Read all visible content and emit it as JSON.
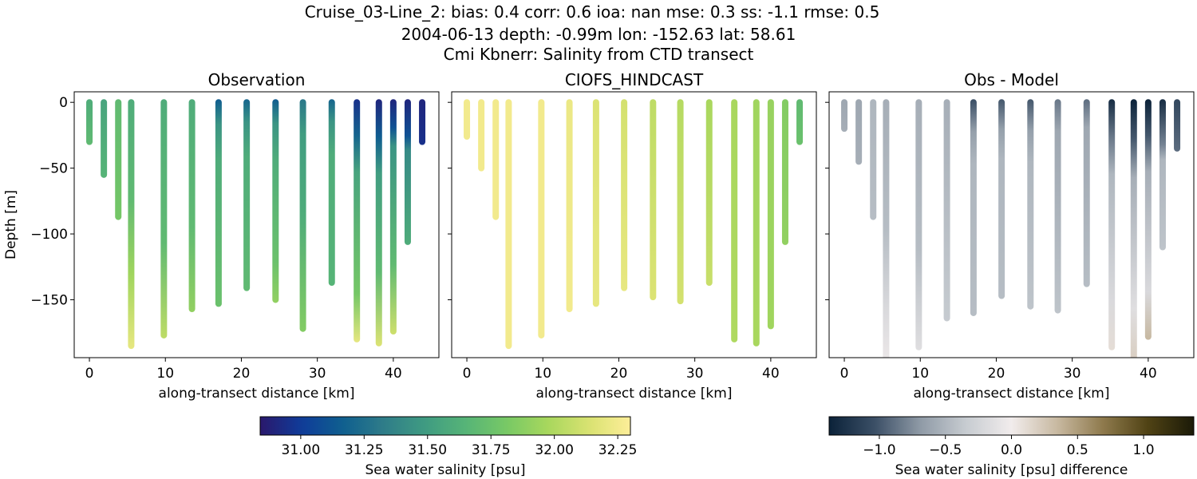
{
  "title": {
    "line1": "Cruise_03-Line_2: bias: 0.4  corr: 0.6  ioa: nan  mse: 0.3  ss: -1.1  rmse: 0.5",
    "line2": "2004-06-13 depth: -0.99m lon: -152.63 lat: 58.61",
    "line3": "Cmi Kbnerr: Salinity from CTD transect"
  },
  "colors": {
    "haline": [
      "#2a186c",
      "#0f3b99",
      "#0f5f8f",
      "#2f7c89",
      "#3f9b82",
      "#56b477",
      "#78c965",
      "#a8d75d",
      "#d9e271",
      "#fdee99"
    ],
    "diff": [
      "#0b2239",
      "#3b4f66",
      "#8f9aa6",
      "#c7ccd1",
      "#f1ecec",
      "#c8b9a1",
      "#8f7a4d",
      "#4f4214",
      "#1b1a08"
    ]
  },
  "chart_data": [
    {
      "type": "scatter",
      "title": "Observation",
      "xlabel": "along-transect distance [km]",
      "ylabel": "Depth [m]",
      "xlim": [
        -2,
        46
      ],
      "ylim": [
        -194,
        8
      ],
      "xticks": [
        0,
        10,
        20,
        30,
        40
      ],
      "yticks": [
        0,
        -50,
        -100,
        -150
      ],
      "colormap": "haline",
      "clim": [
        30.84,
        32.3
      ],
      "profiles": [
        {
          "x": 0.0,
          "max_depth": 30,
          "stops": [
            [
              0,
              31.6
            ],
            [
              1,
              31.7
            ]
          ]
        },
        {
          "x": 1.9,
          "max_depth": 55,
          "stops": [
            [
              0,
              31.55
            ],
            [
              1,
              31.65
            ]
          ]
        },
        {
          "x": 3.8,
          "max_depth": 87,
          "stops": [
            [
              0,
              31.7
            ],
            [
              1,
              31.8
            ]
          ]
        },
        {
          "x": 5.5,
          "max_depth": 185,
          "stops": [
            [
              0,
              31.6
            ],
            [
              0.4,
              31.7
            ],
            [
              0.7,
              31.95
            ],
            [
              1,
              32.2
            ]
          ]
        },
        {
          "x": 9.8,
          "max_depth": 177,
          "stops": [
            [
              0,
              31.6
            ],
            [
              0.6,
              31.7
            ],
            [
              1,
              32.05
            ]
          ]
        },
        {
          "x": 13.5,
          "max_depth": 157,
          "stops": [
            [
              0,
              31.6
            ],
            [
              0.6,
              31.7
            ],
            [
              1,
              31.9
            ]
          ]
        },
        {
          "x": 17.0,
          "max_depth": 153,
          "stops": [
            [
              0,
              31.15
            ],
            [
              0.12,
              31.45
            ],
            [
              0.3,
              31.6
            ],
            [
              1,
              31.75
            ]
          ]
        },
        {
          "x": 20.7,
          "max_depth": 141,
          "stops": [
            [
              0,
              31.2
            ],
            [
              0.12,
              31.45
            ],
            [
              0.3,
              31.6
            ],
            [
              1,
              31.7
            ]
          ]
        },
        {
          "x": 24.5,
          "max_depth": 150,
          "stops": [
            [
              0,
              31.15
            ],
            [
              0.12,
              31.45
            ],
            [
              0.3,
              31.6
            ],
            [
              0.8,
              31.75
            ],
            [
              1,
              31.9
            ]
          ]
        },
        {
          "x": 28.1,
          "max_depth": 172,
          "stops": [
            [
              0,
              31.3
            ],
            [
              0.15,
              31.5
            ],
            [
              0.5,
              31.6
            ],
            [
              1,
              31.85
            ]
          ]
        },
        {
          "x": 31.9,
          "max_depth": 137,
          "stops": [
            [
              0,
              31.2
            ],
            [
              0.12,
              31.45
            ],
            [
              0.3,
              31.6
            ],
            [
              1,
              31.65
            ]
          ]
        },
        {
          "x": 35.2,
          "max_depth": 180,
          "stops": [
            [
              0,
              30.95
            ],
            [
              0.15,
              31.2
            ],
            [
              0.3,
              31.55
            ],
            [
              0.8,
              31.8
            ],
            [
              1,
              32.2
            ]
          ]
        },
        {
          "x": 38.1,
          "max_depth": 183,
          "stops": [
            [
              0,
              30.9
            ],
            [
              0.15,
              31.15
            ],
            [
              0.3,
              31.5
            ],
            [
              0.7,
              31.7
            ],
            [
              1,
              32.15
            ]
          ]
        },
        {
          "x": 40.0,
          "max_depth": 174,
          "stops": [
            [
              0,
              30.9
            ],
            [
              0.12,
              31.1
            ],
            [
              0.2,
              31.45
            ],
            [
              0.7,
              31.7
            ],
            [
              1,
              32.1
            ]
          ]
        },
        {
          "x": 41.9,
          "max_depth": 106,
          "stops": [
            [
              0,
              30.9
            ],
            [
              0.25,
              31.1
            ],
            [
              0.35,
              31.4
            ],
            [
              1,
              31.6
            ]
          ]
        },
        {
          "x": 43.8,
          "max_depth": 30,
          "stops": [
            [
              0,
              30.9
            ],
            [
              1,
              30.95
            ]
          ]
        }
      ]
    },
    {
      "type": "scatter",
      "title": "CIOFS_HINDCAST",
      "xlabel": "along-transect distance [km]",
      "ylabel": "",
      "xlim": [
        -2,
        46
      ],
      "ylim": [
        -194,
        8
      ],
      "xticks": [
        0,
        10,
        20,
        30,
        40
      ],
      "yticks": [
        0,
        -50,
        -100,
        -150
      ],
      "colormap": "haline",
      "clim": [
        30.84,
        32.3
      ],
      "profiles": [
        {
          "x": 0.0,
          "max_depth": 26,
          "stops": [
            [
              0,
              32.25
            ],
            [
              1,
              32.25
            ]
          ]
        },
        {
          "x": 1.9,
          "max_depth": 50,
          "stops": [
            [
              0,
              32.25
            ],
            [
              1,
              32.25
            ]
          ]
        },
        {
          "x": 3.8,
          "max_depth": 87,
          "stops": [
            [
              0,
              32.25
            ],
            [
              1,
              32.25
            ]
          ]
        },
        {
          "x": 5.5,
          "max_depth": 185,
          "stops": [
            [
              0,
              32.25
            ],
            [
              1,
              32.25
            ]
          ]
        },
        {
          "x": 9.8,
          "max_depth": 177,
          "stops": [
            [
              0,
              32.25
            ],
            [
              1,
              32.25
            ]
          ]
        },
        {
          "x": 13.5,
          "max_depth": 157,
          "stops": [
            [
              0,
              32.22
            ],
            [
              1,
              32.25
            ]
          ]
        },
        {
          "x": 17.0,
          "max_depth": 153,
          "stops": [
            [
              0,
              32.15
            ],
            [
              1,
              32.2
            ]
          ]
        },
        {
          "x": 20.7,
          "max_depth": 141,
          "stops": [
            [
              0,
              32.12
            ],
            [
              1,
              32.2
            ]
          ]
        },
        {
          "x": 24.5,
          "max_depth": 148,
          "stops": [
            [
              0,
              32.05
            ],
            [
              1,
              32.15
            ]
          ]
        },
        {
          "x": 28.1,
          "max_depth": 151,
          "stops": [
            [
              0,
              32.02
            ],
            [
              1,
              32.12
            ]
          ]
        },
        {
          "x": 31.9,
          "max_depth": 137,
          "stops": [
            [
              0,
              31.98
            ],
            [
              1,
              32.08
            ]
          ]
        },
        {
          "x": 35.2,
          "max_depth": 180,
          "stops": [
            [
              0,
              31.98
            ],
            [
              1,
              32.0
            ]
          ]
        },
        {
          "x": 38.1,
          "max_depth": 183,
          "stops": [
            [
              0,
              31.95
            ],
            [
              1,
              31.98
            ]
          ]
        },
        {
          "x": 40.0,
          "max_depth": 170,
          "stops": [
            [
              0,
              31.92
            ],
            [
              1,
              31.95
            ]
          ]
        },
        {
          "x": 41.9,
          "max_depth": 106,
          "stops": [
            [
              0,
              31.85
            ],
            [
              1,
              31.9
            ]
          ]
        },
        {
          "x": 43.8,
          "max_depth": 30,
          "stops": [
            [
              0,
              31.7
            ],
            [
              1,
              31.75
            ]
          ]
        }
      ]
    },
    {
      "type": "scatter",
      "title": "Obs - Model",
      "xlabel": "along-transect distance [km]",
      "ylabel": "",
      "xlim": [
        -2,
        46
      ],
      "ylim": [
        -194,
        8
      ],
      "xticks": [
        0,
        10,
        20,
        30,
        40
      ],
      "yticks": [
        0,
        -50,
        -100,
        -150
      ],
      "colormap": "diff",
      "clim": [
        -1.38,
        1.38
      ],
      "profiles": [
        {
          "x": 0.0,
          "max_depth": 20,
          "stops": [
            [
              0,
              -0.6
            ],
            [
              1,
              -0.55
            ]
          ]
        },
        {
          "x": 1.9,
          "max_depth": 45,
          "stops": [
            [
              0,
              -0.6
            ],
            [
              1,
              -0.55
            ]
          ]
        },
        {
          "x": 3.8,
          "max_depth": 87,
          "stops": [
            [
              0,
              -0.5
            ],
            [
              1,
              -0.45
            ]
          ]
        },
        {
          "x": 5.5,
          "max_depth": 194,
          "stops": [
            [
              0,
              -0.55
            ],
            [
              0.5,
              -0.45
            ],
            [
              0.8,
              -0.2
            ],
            [
              1,
              -0.05
            ]
          ]
        },
        {
          "x": 9.8,
          "max_depth": 186,
          "stops": [
            [
              0,
              -0.55
            ],
            [
              0.6,
              -0.45
            ],
            [
              1,
              -0.15
            ]
          ]
        },
        {
          "x": 13.5,
          "max_depth": 164,
          "stops": [
            [
              0,
              -0.55
            ],
            [
              1,
              -0.35
            ]
          ]
        },
        {
          "x": 17.0,
          "max_depth": 160,
          "stops": [
            [
              0,
              -1.05
            ],
            [
              0.15,
              -0.65
            ],
            [
              0.3,
              -0.5
            ],
            [
              1,
              -0.45
            ]
          ]
        },
        {
          "x": 20.7,
          "max_depth": 147,
          "stops": [
            [
              0,
              -1.0
            ],
            [
              0.15,
              -0.65
            ],
            [
              0.3,
              -0.5
            ],
            [
              1,
              -0.45
            ]
          ]
        },
        {
          "x": 24.5,
          "max_depth": 155,
          "stops": [
            [
              0,
              -1.0
            ],
            [
              0.15,
              -0.65
            ],
            [
              0.3,
              -0.5
            ],
            [
              1,
              -0.4
            ]
          ]
        },
        {
          "x": 28.1,
          "max_depth": 158,
          "stops": [
            [
              0,
              -0.85
            ],
            [
              0.15,
              -0.6
            ],
            [
              1,
              -0.4
            ]
          ]
        },
        {
          "x": 31.9,
          "max_depth": 138,
          "stops": [
            [
              0,
              -0.9
            ],
            [
              0.15,
              -0.6
            ],
            [
              1,
              -0.45
            ]
          ]
        },
        {
          "x": 35.2,
          "max_depth": 186,
          "stops": [
            [
              0,
              -1.3
            ],
            [
              0.15,
              -0.85
            ],
            [
              0.3,
              -0.5
            ],
            [
              0.8,
              -0.2
            ],
            [
              1,
              0.1
            ]
          ]
        },
        {
          "x": 38.1,
          "max_depth": 194,
          "stops": [
            [
              0,
              -1.38
            ],
            [
              0.15,
              -1.0
            ],
            [
              0.3,
              -0.55
            ],
            [
              0.8,
              -0.15
            ],
            [
              1,
              0.2
            ]
          ]
        },
        {
          "x": 40.0,
          "max_depth": 178,
          "stops": [
            [
              0,
              -1.38
            ],
            [
              0.15,
              -1.0
            ],
            [
              0.3,
              -0.55
            ],
            [
              0.8,
              -0.2
            ],
            [
              1,
              0.35
            ]
          ]
        },
        {
          "x": 41.9,
          "max_depth": 110,
          "stops": [
            [
              0,
              -1.3
            ],
            [
              0.3,
              -0.8
            ],
            [
              0.4,
              -0.5
            ],
            [
              1,
              -0.4
            ]
          ]
        },
        {
          "x": 43.8,
          "max_depth": 35,
          "stops": [
            [
              0,
              -1.1
            ],
            [
              1,
              -0.9
            ]
          ]
        }
      ]
    }
  ],
  "colorbars": [
    {
      "label": "Sea water salinity [psu]",
      "colormap": "haline",
      "clim": [
        30.84,
        32.3
      ],
      "ticks": [
        31.0,
        31.25,
        31.5,
        31.75,
        32.0,
        32.25
      ],
      "tick_labels": [
        "31.00",
        "31.25",
        "31.50",
        "31.75",
        "32.00",
        "32.25"
      ]
    },
    {
      "label": "Sea water salinity [psu] difference",
      "colormap": "diff",
      "clim": [
        -1.38,
        1.38
      ],
      "ticks": [
        -1.0,
        -0.5,
        0.0,
        0.5,
        1.0
      ],
      "tick_labels": [
        "−1.0",
        "−0.5",
        "0.0",
        "0.5",
        "1.0"
      ]
    }
  ]
}
